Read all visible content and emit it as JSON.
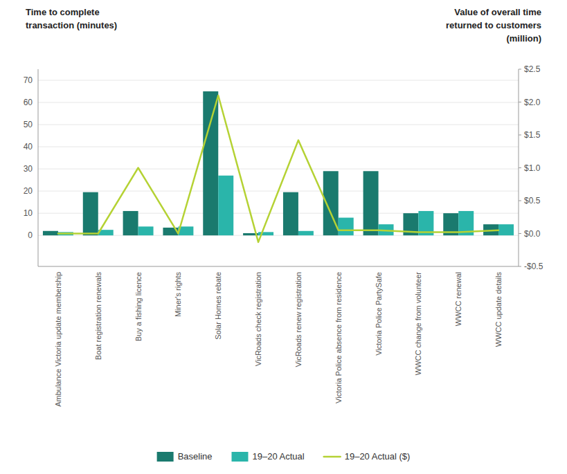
{
  "chart_data": {
    "type": "bar",
    "y_label": "Time to complete\ntransaction (minutes)",
    "y2_label": "Value of overall time\nreturned to customers\n(million)",
    "categories": [
      "Ambulance Victoria update membership",
      "Boat registration renewals",
      "Buy a fishing licence",
      "Miner's rights",
      "Solar Homes rebate",
      "VicRoads check registration",
      "VicRoads renew registration",
      "Victoria Police absence from residence",
      "Victoria Police PartySafe",
      "WWCC change from volunteer",
      "WWCC renewal",
      "WWCC update details"
    ],
    "series": [
      {
        "name": "Baseline",
        "type": "bar",
        "color": "#1a7a6e",
        "values": [
          2.0,
          19.5,
          11.0,
          3.5,
          65.0,
          1.0,
          19.5,
          29.0,
          29.0,
          10.0,
          10.0,
          5.0
        ]
      },
      {
        "name": "19–20 Actual",
        "type": "bar",
        "color": "#2ab5aa",
        "values": [
          1.5,
          2.5,
          4.0,
          4.0,
          27.0,
          1.5,
          2.0,
          8.0,
          5.0,
          11.0,
          11.0,
          5.0
        ]
      },
      {
        "name": "19–20 Actual ($)",
        "type": "line",
        "axis": "y2",
        "color": "#b5d234",
        "values": [
          0.0,
          0.0,
          1.0,
          0.0,
          2.1,
          -0.13,
          1.42,
          0.05,
          0.05,
          0.02,
          0.02,
          0.05
        ]
      }
    ],
    "ylim": [
      -14,
      75
    ],
    "yticks": [
      0,
      10,
      20,
      30,
      40,
      50,
      60,
      70
    ],
    "y2lim": [
      -0.5,
      2.5
    ],
    "y2ticks": [
      {
        "value": -0.5,
        "label": "-$0.5"
      },
      {
        "value": 0.0,
        "label": "$0.0"
      },
      {
        "value": 0.5,
        "label": "$0.5"
      },
      {
        "value": 1.0,
        "label": "$1.0"
      },
      {
        "value": 1.5,
        "label": "$1.5"
      },
      {
        "value": 2.0,
        "label": "$2.0"
      },
      {
        "value": 2.5,
        "label": "$2.5"
      }
    ],
    "grid": true,
    "legend": "bottom"
  }
}
